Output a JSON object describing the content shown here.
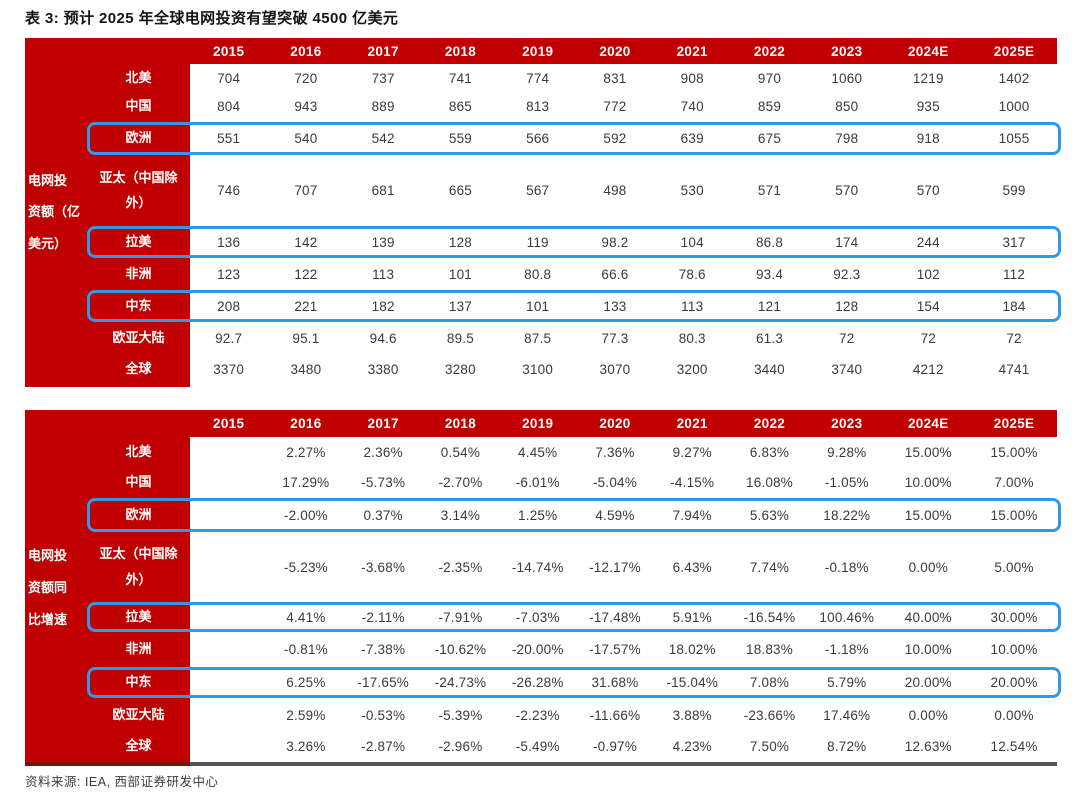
{
  "page_title": "表 3: 预计 2025 年全球电网投资有望突破 4500 亿美元",
  "source_note": "资料来源: IEA, 西部证券研发中心",
  "colors": {
    "table_red": "#C00000",
    "highlight_blue": "#2F9BE8",
    "header_text": "#FFFFFF",
    "data_text": "#3A3A3A",
    "bottom_bar_red": "#7A1014",
    "bottom_bar_gray": "#555555"
  },
  "chart_data": [
    {
      "type": "table",
      "title": "电网投资额（亿美元）",
      "group_label": "电网投资额（亿美元）",
      "group_label_lines": [
        "电网投",
        "资额（亿",
        "美元）"
      ],
      "columns": [
        "2015",
        "2016",
        "2017",
        "2018",
        "2019",
        "2020",
        "2021",
        "2022",
        "2023",
        "2024E",
        "2025E"
      ],
      "rows": [
        {
          "key": "north-america",
          "name": "北美",
          "name_lines": [
            "北美"
          ],
          "highlighted": false,
          "values": [
            "704",
            "720",
            "737",
            "741",
            "774",
            "831",
            "908",
            "970",
            "1060",
            "1219",
            "1402"
          ]
        },
        {
          "key": "china",
          "name": "中国",
          "name_lines": [
            "中国"
          ],
          "highlighted": false,
          "values": [
            "804",
            "943",
            "889",
            "865",
            "813",
            "772",
            "740",
            "859",
            "850",
            "935",
            "1000"
          ]
        },
        {
          "key": "europe",
          "name": "欧洲",
          "name_lines": [
            "欧洲"
          ],
          "highlighted": true,
          "values": [
            "551",
            "540",
            "542",
            "559",
            "566",
            "592",
            "639",
            "675",
            "798",
            "918",
            "1055"
          ]
        },
        {
          "key": "apac-ex-china",
          "name": "亚太（中国除外）",
          "name_lines": [
            "亚太（中国除",
            "外）"
          ],
          "highlighted": false,
          "values": [
            "746",
            "707",
            "681",
            "665",
            "567",
            "498",
            "530",
            "571",
            "570",
            "570",
            "599"
          ]
        },
        {
          "key": "latin-america",
          "name": "拉美",
          "name_lines": [
            "拉美"
          ],
          "highlighted": true,
          "values": [
            "136",
            "142",
            "139",
            "128",
            "119",
            "98.2",
            "104",
            "86.8",
            "174",
            "244",
            "317"
          ]
        },
        {
          "key": "africa",
          "name": "非洲",
          "name_lines": [
            "非洲"
          ],
          "highlighted": false,
          "values": [
            "123",
            "122",
            "113",
            "101",
            "80.8",
            "66.6",
            "78.6",
            "93.4",
            "92.3",
            "102",
            "112"
          ]
        },
        {
          "key": "middle-east",
          "name": "中东",
          "name_lines": [
            "中东"
          ],
          "highlighted": true,
          "values": [
            "208",
            "221",
            "182",
            "137",
            "101",
            "133",
            "113",
            "121",
            "128",
            "154",
            "184"
          ]
        },
        {
          "key": "eurasia",
          "name": "欧亚大陆",
          "name_lines": [
            "欧亚大陆"
          ],
          "highlighted": false,
          "values": [
            "92.7",
            "95.1",
            "94.6",
            "89.5",
            "87.5",
            "77.3",
            "80.3",
            "61.3",
            "72",
            "72",
            "72"
          ]
        },
        {
          "key": "global",
          "name": "全球",
          "name_lines": [
            "全球"
          ],
          "highlighted": false,
          "values": [
            "3370",
            "3480",
            "3380",
            "3280",
            "3100",
            "3070",
            "3200",
            "3440",
            "3740",
            "4212",
            "4741"
          ]
        }
      ]
    },
    {
      "type": "table",
      "title": "电网投资额同比增速",
      "group_label": "电网投资额同比增速",
      "group_label_lines": [
        "电网投",
        "资额同",
        "比增速"
      ],
      "columns": [
        "2015",
        "2016",
        "2017",
        "2018",
        "2019",
        "2020",
        "2021",
        "2022",
        "2023",
        "2024E",
        "2025E"
      ],
      "rows": [
        {
          "key": "north-america",
          "name": "北美",
          "name_lines": [
            "北美"
          ],
          "highlighted": false,
          "values": [
            "",
            "2.27%",
            "2.36%",
            "0.54%",
            "4.45%",
            "7.36%",
            "9.27%",
            "6.83%",
            "9.28%",
            "15.00%",
            "15.00%"
          ]
        },
        {
          "key": "china",
          "name": "中国",
          "name_lines": [
            "中国"
          ],
          "highlighted": false,
          "values": [
            "",
            "17.29%",
            "-5.73%",
            "-2.70%",
            "-6.01%",
            "-5.04%",
            "-4.15%",
            "16.08%",
            "-1.05%",
            "10.00%",
            "7.00%"
          ]
        },
        {
          "key": "europe",
          "name": "欧洲",
          "name_lines": [
            "欧洲"
          ],
          "highlighted": true,
          "values": [
            "",
            "-2.00%",
            "0.37%",
            "3.14%",
            "1.25%",
            "4.59%",
            "7.94%",
            "5.63%",
            "18.22%",
            "15.00%",
            "15.00%"
          ]
        },
        {
          "key": "apac-ex-china",
          "name": "亚太（中国除外）",
          "name_lines": [
            "亚太（中国除",
            "外）"
          ],
          "highlighted": false,
          "values": [
            "",
            "-5.23%",
            "-3.68%",
            "-2.35%",
            "-14.74%",
            "-12.17%",
            "6.43%",
            "7.74%",
            "-0.18%",
            "0.00%",
            "5.00%"
          ]
        },
        {
          "key": "latin-america",
          "name": "拉美",
          "name_lines": [
            "拉美"
          ],
          "highlighted": true,
          "values": [
            "",
            "4.41%",
            "-2.11%",
            "-7.91%",
            "-7.03%",
            "-17.48%",
            "5.91%",
            "-16.54%",
            "100.46%",
            "40.00%",
            "30.00%"
          ]
        },
        {
          "key": "africa",
          "name": "非洲",
          "name_lines": [
            "非洲"
          ],
          "highlighted": false,
          "values": [
            "",
            "-0.81%",
            "-7.38%",
            "-10.62%",
            "-20.00%",
            "-17.57%",
            "18.02%",
            "18.83%",
            "-1.18%",
            "10.00%",
            "10.00%"
          ]
        },
        {
          "key": "middle-east",
          "name": "中东",
          "name_lines": [
            "中东"
          ],
          "highlighted": true,
          "values": [
            "",
            "6.25%",
            "-17.65%",
            "-24.73%",
            "-26.28%",
            "31.68%",
            "-15.04%",
            "7.08%",
            "5.79%",
            "20.00%",
            "20.00%"
          ]
        },
        {
          "key": "eurasia",
          "name": "欧亚大陆",
          "name_lines": [
            "欧亚大陆"
          ],
          "highlighted": false,
          "values": [
            "",
            "2.59%",
            "-0.53%",
            "-5.39%",
            "-2.23%",
            "-11.66%",
            "3.88%",
            "-23.66%",
            "17.46%",
            "0.00%",
            "0.00%"
          ]
        },
        {
          "key": "global",
          "name": "全球",
          "name_lines": [
            "全球"
          ],
          "highlighted": false,
          "values": [
            "",
            "3.26%",
            "-2.87%",
            "-2.96%",
            "-5.49%",
            "-0.97%",
            "4.23%",
            "7.50%",
            "8.72%",
            "12.63%",
            "12.54%"
          ]
        }
      ]
    }
  ]
}
